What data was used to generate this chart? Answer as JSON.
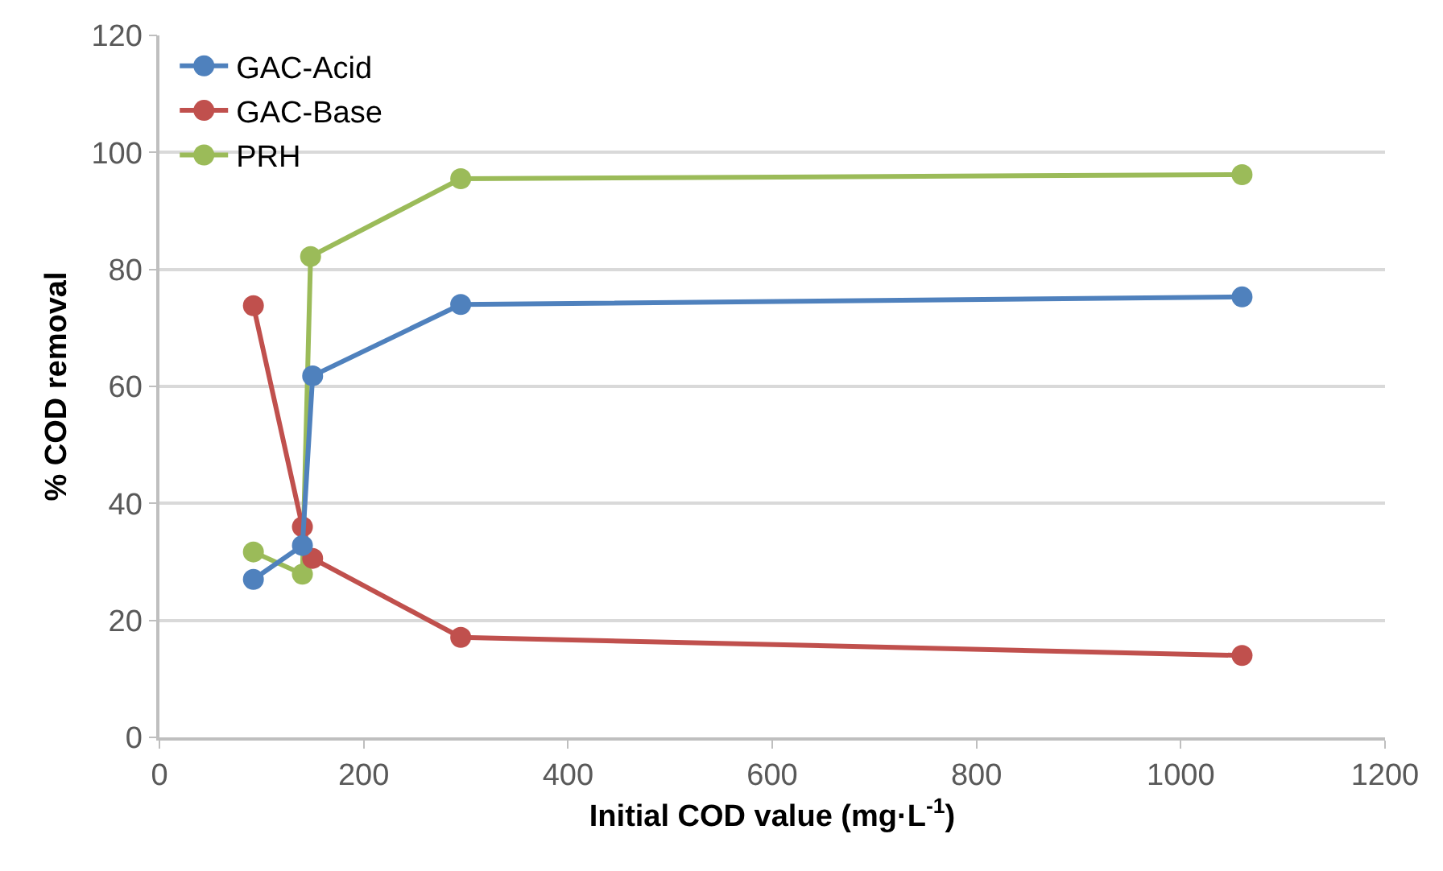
{
  "chart_data": {
    "type": "line",
    "xlabel": "Initial COD value (mg·L$^{-1}$)",
    "ylabel": "% COD removal",
    "xlim": [
      0,
      1200
    ],
    "xticks": [
      0,
      200,
      400,
      600,
      800,
      1000,
      1200
    ],
    "ylim": [
      0,
      120
    ],
    "yticks": [
      0,
      20,
      40,
      60,
      80,
      100,
      120
    ],
    "grid": "y",
    "legend": "top left",
    "marker": "circle",
    "line_style": "solid",
    "series": [
      {
        "name": "GAC-Acid",
        "color": "#4f81bd",
        "x": [
          92,
          140,
          150,
          295,
          1060
        ],
        "values": [
          27.0,
          32.8,
          61.8,
          74.0,
          75.3
        ]
      },
      {
        "name": "GAC-Base",
        "color": "#c0504d",
        "x": [
          92,
          140,
          150,
          295,
          1060
        ],
        "values": [
          73.8,
          36.0,
          30.6,
          17.1,
          14.0
        ]
      },
      {
        "name": "PRH",
        "color": "#9bbb59",
        "x": [
          92,
          140,
          148,
          295,
          1060
        ],
        "values": [
          31.7,
          27.9,
          82.2,
          95.5,
          96.2
        ]
      }
    ]
  }
}
